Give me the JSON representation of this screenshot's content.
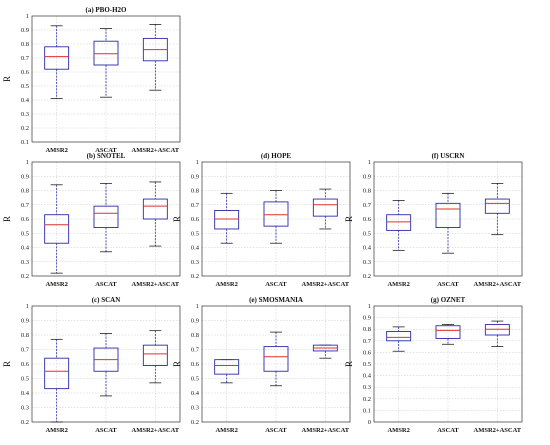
{
  "chart_data": [
    {
      "type": "box",
      "title": "(a) PBO-H2O",
      "ylabel": "R",
      "ylim": [
        0.1,
        1.0
      ],
      "yticks": [
        "0.1",
        "0.2",
        "0.3",
        "0.4",
        "0.5",
        "0.6",
        "0.7",
        "0.8",
        "0.9",
        "1"
      ],
      "categories": [
        "AMSR2",
        "ASCAT",
        "AMSR2+ASCAT"
      ],
      "boxes": [
        {
          "min": 0.41,
          "q1": 0.62,
          "median": 0.71,
          "q3": 0.78,
          "max": 0.93
        },
        {
          "min": 0.42,
          "q1": 0.65,
          "median": 0.73,
          "q3": 0.82,
          "max": 0.91
        },
        {
          "min": 0.47,
          "q1": 0.68,
          "median": 0.76,
          "q3": 0.84,
          "max": 0.94
        }
      ]
    },
    {
      "type": "box",
      "title": "(b) SNOTEL",
      "ylabel": "R",
      "ylim": [
        0.2,
        1.0
      ],
      "yticks": [
        "0.2",
        "0.3",
        "0.4",
        "0.5",
        "0.6",
        "0.7",
        "0.8",
        "0.9",
        "1"
      ],
      "categories": [
        "AMSR2",
        "ASCAT",
        "AMSR2+ASCAT"
      ],
      "boxes": [
        {
          "min": 0.22,
          "q1": 0.43,
          "median": 0.56,
          "q3": 0.63,
          "max": 0.84
        },
        {
          "min": 0.37,
          "q1": 0.54,
          "median": 0.64,
          "q3": 0.69,
          "max": 0.85
        },
        {
          "min": 0.41,
          "q1": 0.6,
          "median": 0.69,
          "q3": 0.74,
          "max": 0.86
        }
      ]
    },
    {
      "type": "box",
      "title": "(c) SCAN",
      "ylabel": "R",
      "ylim": [
        0.2,
        1.0
      ],
      "yticks": [
        "0.2",
        "0.3",
        "0.4",
        "0.5",
        "0.6",
        "0.7",
        "0.8",
        "0.9",
        "1"
      ],
      "categories": [
        "AMSR2",
        "ASCAT",
        "AMSR2+ASCAT"
      ],
      "boxes": [
        {
          "min": 0.2,
          "q1": 0.43,
          "median": 0.55,
          "q3": 0.64,
          "max": 0.77
        },
        {
          "min": 0.38,
          "q1": 0.55,
          "median": 0.63,
          "q3": 0.71,
          "max": 0.81
        },
        {
          "min": 0.47,
          "q1": 0.59,
          "median": 0.67,
          "q3": 0.73,
          "max": 0.83
        }
      ]
    },
    {
      "type": "box",
      "title": "(d) HOPE",
      "ylabel": "R",
      "ylim": [
        0.2,
        1.0
      ],
      "yticks": [
        "0.2",
        "0.3",
        "0.4",
        "0.5",
        "0.6",
        "0.7",
        "0.8",
        "0.9",
        "1"
      ],
      "categories": [
        "AMSR2",
        "ASCAT",
        "AMSR2+ASCAT"
      ],
      "boxes": [
        {
          "min": 0.43,
          "q1": 0.53,
          "median": 0.6,
          "q3": 0.66,
          "max": 0.78
        },
        {
          "min": 0.43,
          "q1": 0.55,
          "median": 0.63,
          "q3": 0.72,
          "max": 0.8
        },
        {
          "min": 0.53,
          "q1": 0.62,
          "median": 0.7,
          "q3": 0.74,
          "max": 0.81
        }
      ]
    },
    {
      "type": "box",
      "title": "(e) SMOSMANIA",
      "ylabel": "R",
      "ylim": [
        0.2,
        1.0
      ],
      "yticks": [
        "0.2",
        "0.3",
        "0.4",
        "0.5",
        "0.6",
        "0.7",
        "0.8",
        "0.9",
        "1"
      ],
      "categories": [
        "AMSR2",
        "ASCAT",
        "AMSR2+ASCAT"
      ],
      "boxes": [
        {
          "min": 0.47,
          "q1": 0.53,
          "median": 0.59,
          "q3": 0.63,
          "max": 0.63
        },
        {
          "min": 0.45,
          "q1": 0.55,
          "median": 0.65,
          "q3": 0.72,
          "max": 0.82
        },
        {
          "min": 0.64,
          "q1": 0.69,
          "median": 0.71,
          "q3": 0.73,
          "max": 0.73
        }
      ]
    },
    {
      "type": "box",
      "title": "(f) USCRN",
      "ylabel": "R",
      "ylim": [
        0.2,
        1.0
      ],
      "yticks": [
        "0.2",
        "0.3",
        "0.4",
        "0.5",
        "0.6",
        "0.7",
        "0.8",
        "0.9",
        "1"
      ],
      "categories": [
        "AMSR2",
        "ASCAT",
        "AMSR2+ASCAT"
      ],
      "boxes": [
        {
          "min": 0.38,
          "q1": 0.52,
          "median": 0.58,
          "q3": 0.63,
          "max": 0.73
        },
        {
          "min": 0.36,
          "q1": 0.54,
          "median": 0.67,
          "q3": 0.71,
          "max": 0.78
        },
        {
          "min": 0.49,
          "q1": 0.64,
          "median": 0.71,
          "q3": 0.74,
          "max": 0.85
        }
      ]
    },
    {
      "type": "box",
      "title": "(g) OZNET",
      "ylabel": "R",
      "ylim": [
        0.0,
        1.0
      ],
      "yticks": [
        "0",
        "0.1",
        "0.2",
        "0.3",
        "0.4",
        "0.5",
        "0.6",
        "0.7",
        "0.8",
        "0.9",
        "1"
      ],
      "categories": [
        "AMSR2",
        "ASCAT",
        "AMSR2+ASCAT"
      ],
      "boxes": [
        {
          "min": 0.61,
          "q1": 0.7,
          "median": 0.73,
          "q3": 0.78,
          "max": 0.82
        },
        {
          "min": 0.67,
          "q1": 0.72,
          "median": 0.79,
          "q3": 0.83,
          "max": 0.84
        },
        {
          "min": 0.65,
          "q1": 0.75,
          "median": 0.8,
          "q3": 0.84,
          "max": 0.87
        }
      ]
    }
  ],
  "colors": {
    "box": "#2a2aa8",
    "median": "#e03030",
    "cap": "#222222",
    "grid": "#c8c8c8"
  }
}
